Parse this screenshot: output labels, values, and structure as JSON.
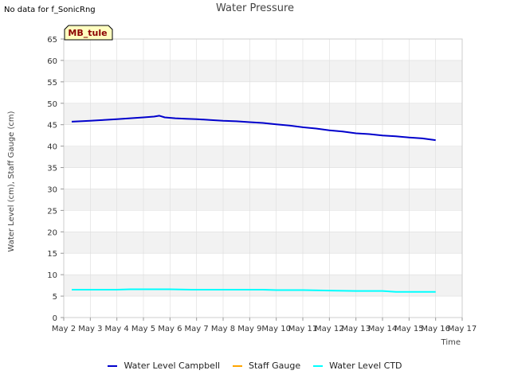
{
  "header": {
    "no_data_text": "No data for f_SonicRng",
    "badge_label": "MB_tule"
  },
  "colors": {
    "band": "#f2f2f2",
    "grid": "#dddddd",
    "badge_fill": "#ffffc0"
  },
  "chart_data": {
    "type": "line",
    "title": "Water Pressure",
    "xlabel": "Time",
    "ylabel": "Water Level (cm), Staff Gauge (cm)",
    "ylim": [
      0,
      65
    ],
    "yticks": [
      0,
      5,
      10,
      15,
      20,
      25,
      30,
      35,
      40,
      45,
      50,
      55,
      60,
      65
    ],
    "xlim": [
      2,
      17
    ],
    "xticks": [
      {
        "value": 2,
        "label": "May 2"
      },
      {
        "value": 3,
        "label": "May 3"
      },
      {
        "value": 4,
        "label": "May 4"
      },
      {
        "value": 5,
        "label": "May 5"
      },
      {
        "value": 6,
        "label": "May 6"
      },
      {
        "value": 7,
        "label": "May 7"
      },
      {
        "value": 8,
        "label": "May 8"
      },
      {
        "value": 9,
        "label": "May 9"
      },
      {
        "value": 10,
        "label": "May 10"
      },
      {
        "value": 11,
        "label": "May 11"
      },
      {
        "value": 12,
        "label": "May 12"
      },
      {
        "value": 13,
        "label": "May 13"
      },
      {
        "value": 14,
        "label": "May 14"
      },
      {
        "value": 15,
        "label": "May 15"
      },
      {
        "value": 16,
        "label": "May 16"
      },
      {
        "value": 17,
        "label": "May 17"
      }
    ],
    "series": [
      {
        "name": "Water Level Campbell",
        "color": "#0000cc",
        "x": [
          2.3,
          3.0,
          3.5,
          4.0,
          4.5,
          5.0,
          5.4,
          5.6,
          5.8,
          6.2,
          6.6,
          7.0,
          7.5,
          8.0,
          8.5,
          9.0,
          9.5,
          10.0,
          10.5,
          11.0,
          11.5,
          12.0,
          12.5,
          13.0,
          13.5,
          14.0,
          14.5,
          15.0,
          15.5,
          16.0
        ],
        "values": [
          45.7,
          45.9,
          46.1,
          46.3,
          46.5,
          46.7,
          46.9,
          47.1,
          46.7,
          46.5,
          46.4,
          46.3,
          46.1,
          45.9,
          45.8,
          45.6,
          45.4,
          45.1,
          44.8,
          44.4,
          44.1,
          43.7,
          43.4,
          43.0,
          42.8,
          42.5,
          42.3,
          42.0,
          41.8,
          41.4
        ]
      },
      {
        "name": "Staff Gauge",
        "color": "#ffa500",
        "x": [],
        "values": []
      },
      {
        "name": "Water Level CTD",
        "color": "#00ffff",
        "x": [
          2.3,
          3.0,
          4.0,
          4.5,
          5.0,
          6.0,
          6.8,
          7.5,
          8.5,
          9.5,
          10.0,
          11.0,
          12.0,
          13.0,
          14.0,
          14.5,
          15.0,
          16.0
        ],
        "values": [
          6.5,
          6.5,
          6.5,
          6.6,
          6.6,
          6.6,
          6.5,
          6.5,
          6.5,
          6.5,
          6.4,
          6.4,
          6.3,
          6.2,
          6.2,
          6.0,
          6.0,
          6.0
        ]
      }
    ],
    "legend_position": "bottom-center"
  }
}
